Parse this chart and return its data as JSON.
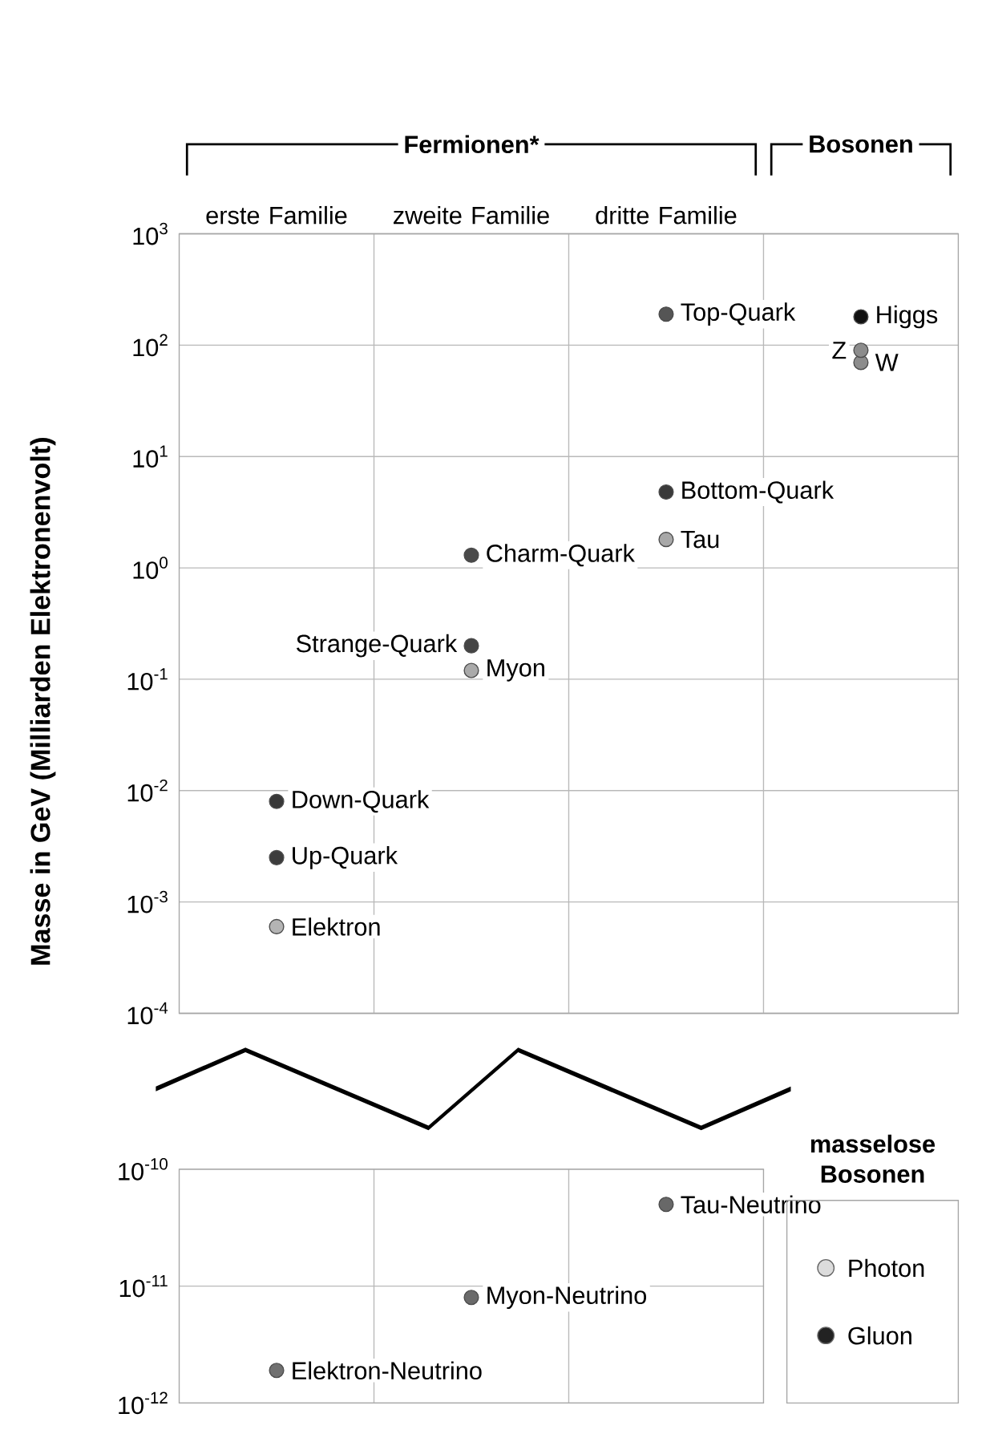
{
  "chart_data": [
    {
      "type": "scatter",
      "ylabel": "Masse in GeV (Milliarden Elektronenvolt)",
      "categories": [
        "erste Familie",
        "zweite Familie",
        "dritte Familie",
        null
      ],
      "log": true,
      "grid": true,
      "marker": "circle",
      "ylim": [
        0.0001,
        1000
      ],
      "yticks": [
        {
          "value": 0.0001,
          "label": "10$^{-4}$"
        },
        {
          "value": 0.001,
          "label": "10$^{-3}$"
        },
        {
          "value": 0.01,
          "label": "10$^{-2}$"
        },
        {
          "value": 0.1,
          "label": "10$^{-1}$"
        },
        {
          "value": 1,
          "label": "10$^{0}$"
        },
        {
          "value": 10,
          "label": "10$^{1}$"
        },
        {
          "value": 100,
          "label": "10$^{2}$"
        },
        {
          "value": 1000,
          "label": "10$^{3}$"
        }
      ],
      "series": [
        {
          "name": "Elektron",
          "color": "#b4b4b4",
          "values": [
            0.0006,
            null,
            null,
            null
          ]
        },
        {
          "name": "Up-Quark",
          "color": "#3c3c3c",
          "values": [
            0.0025,
            null,
            null,
            null
          ]
        },
        {
          "name": "Down-Quark",
          "color": "#383838",
          "values": [
            0.008,
            null,
            null,
            null
          ]
        },
        {
          "name": "Myon",
          "color": "#aaaaaa",
          "values": [
            null,
            0.12,
            null,
            null
          ]
        },
        {
          "name": "Strange-Quark",
          "color": "#444444",
          "values": [
            null,
            0.2,
            null,
            null
          ]
        },
        {
          "name": "Charm-Quark",
          "color": "#4a4a4a",
          "values": [
            null,
            1.3,
            null,
            null
          ]
        },
        {
          "name": "Tau",
          "color": "#a8a8a8",
          "values": [
            null,
            null,
            1.8,
            null
          ]
        },
        {
          "name": "Bottom-Quark",
          "color": "#3a3a3a",
          "values": [
            null,
            null,
            4.8,
            null
          ]
        },
        {
          "name": "Top-Quark",
          "color": "#555555",
          "values": [
            null,
            null,
            190,
            null
          ]
        },
        {
          "name": "W",
          "color": "#8c8c8c",
          "values": [
            null,
            null,
            null,
            70
          ]
        },
        {
          "name": "Z",
          "color": "#8c8c8c",
          "values": [
            null,
            null,
            null,
            90
          ]
        },
        {
          "name": "Higgs",
          "color": "#111111",
          "values": [
            null,
            null,
            null,
            180
          ]
        }
      ],
      "annotations": [
        "Fermionen*",
        "Bosonen"
      ]
    },
    {
      "type": "scatter",
      "categories": [
        null,
        null,
        null
      ],
      "log": true,
      "grid": true,
      "marker": "circle",
      "ylim": [
        1e-12,
        1e-10
      ],
      "yticks": [
        {
          "value": 1e-12,
          "label": "10$^{-12}$"
        },
        {
          "value": 1e-11,
          "label": "10$^{-11}$"
        },
        {
          "value": 1e-10,
          "label": "10$^{-10}$"
        }
      ],
      "series": [
        {
          "name": "Elektron-Neutrino",
          "color": "#707070",
          "values": [
            1.9e-12,
            null,
            null
          ]
        },
        {
          "name": "Myon-Neutrino",
          "color": "#6a6a6a",
          "values": [
            null,
            8e-12,
            null
          ]
        },
        {
          "name": "Tau-Neutrino",
          "color": "#686868",
          "values": [
            null,
            null,
            5e-11
          ]
        }
      ]
    },
    {
      "type": "other",
      "title": "masselose Bosonen",
      "annotations": [
        "Photon",
        "Gluon"
      ],
      "colors": [
        "#dcdcdc",
        "#222222"
      ]
    }
  ]
}
